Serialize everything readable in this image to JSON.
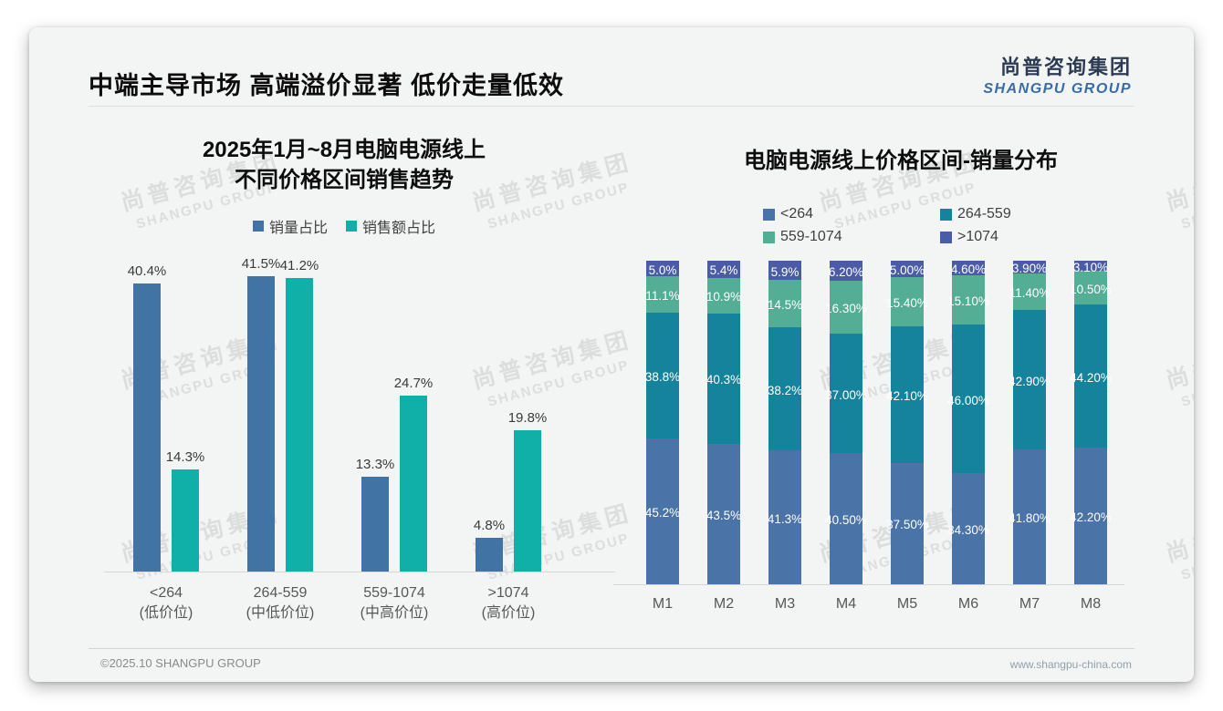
{
  "slide": {
    "title": "中端主导市场 高端溢价显著 低价走量低效",
    "logo": {
      "cn": "尚普咨询集团",
      "en": "SHANGPU GROUP"
    },
    "watermark": {
      "cn": "尚普咨询集团",
      "en": "SHANGPU GROUP"
    },
    "footer": {
      "left": "©2025.10 SHANGPU GROUP",
      "right": "www.shangpu-china.com"
    }
  },
  "colors": {
    "left_blue": "#4273A5",
    "left_teal": "#10AFA7",
    "stack_blue": "#4A73A7",
    "stack_teal": "#16839C",
    "stack_green": "#54AE96",
    "stack_indigo": "#4A5CA5",
    "logo_navy": "#2C3A52",
    "logo_blue": "#3A6CA8"
  },
  "chart_data": [
    {
      "type": "bar",
      "title_line1": "2025年1月~8月电脑电源线上",
      "title_line2": "不同价格区间销售趋势",
      "categories": [
        "<264",
        "264-559",
        "559-1074",
        ">1074"
      ],
      "category_sublabels": [
        "(低价位)",
        "(中低价位)",
        "(中高价位)",
        "(高价位)"
      ],
      "unit": "%",
      "ylim": [
        0,
        45
      ],
      "grid": false,
      "legend_position": "top",
      "series": [
        {
          "name": "销量占比",
          "color": "#4273A5",
          "values": [
            40.4,
            41.5,
            13.3,
            4.8
          ],
          "labels": [
            "40.4%",
            "41.5%",
            "13.3%",
            "4.8%"
          ]
        },
        {
          "name": "销售额占比",
          "color": "#10AFA7",
          "values": [
            14.3,
            41.2,
            24.7,
            19.8
          ],
          "labels": [
            "14.3%",
            "41.2%",
            "24.7%",
            "19.8%"
          ]
        }
      ]
    },
    {
      "type": "stacked-bar",
      "title": "电脑电源线上价格区间-销量分布",
      "categories": [
        "M1",
        "M2",
        "M3",
        "M4",
        "M5",
        "M6",
        "M7",
        "M8"
      ],
      "unit": "%",
      "ylim": [
        0,
        100
      ],
      "grid": false,
      "legend_position": "top",
      "series": [
        {
          "name": "<264",
          "color": "#4A73A7",
          "values": [
            45.2,
            43.5,
            41.3,
            40.5,
            37.5,
            34.3,
            41.8,
            42.2
          ],
          "labels": [
            "45.2%",
            "43.5%",
            "41.3%",
            "40.50%",
            "37.50%",
            "34.30%",
            "41.80%",
            "42.20%"
          ]
        },
        {
          "name": "264-559",
          "color": "#16839C",
          "values": [
            38.8,
            40.3,
            38.2,
            37.0,
            42.1,
            46.0,
            42.9,
            44.2
          ],
          "labels": [
            "38.8%",
            "40.3%",
            "38.2%",
            "37.00%",
            "42.10%",
            "46.00%",
            "42.90%",
            "44.20%"
          ]
        },
        {
          "name": "559-1074",
          "color": "#54AE96",
          "values": [
            11.1,
            10.9,
            14.5,
            16.3,
            15.4,
            15.1,
            11.4,
            10.5
          ],
          "labels": [
            "11.1%",
            "10.9%",
            "14.5%",
            "16.30%",
            "15.40%",
            "15.10%",
            "11.40%",
            "10.50%"
          ]
        },
        {
          "name": ">1074",
          "color": "#4A5CA5",
          "values": [
            5.0,
            5.4,
            5.9,
            6.2,
            5.0,
            4.6,
            3.9,
            3.1
          ],
          "labels": [
            "5.0%",
            "5.4%",
            "5.9%",
            "6.20%",
            "5.00%",
            "4.60%",
            "3.90%",
            "3.10%"
          ]
        }
      ]
    }
  ]
}
